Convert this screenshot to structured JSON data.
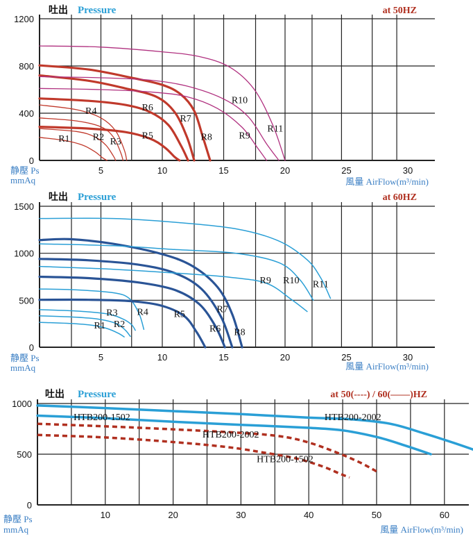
{
  "chart_data": [
    {
      "type": "line",
      "title_cn": "吐出",
      "title_en": "Pressure",
      "frequency_label": "at  50HZ",
      "ylabel_cn": "静壓 Ps",
      "ylabel_unit": "mmAq",
      "xlabel": "風量  AirFlow(m³/min)",
      "xlim": [
        0,
        32.5
      ],
      "ylim": [
        0,
        1200
      ],
      "xticks": [
        5,
        10,
        15,
        20,
        25,
        30
      ],
      "xtick_labels": [
        "5",
        "10",
        "15",
        "20",
        "25",
        "30"
      ],
      "yticks": [
        0,
        400,
        800,
        1200
      ],
      "ytick_labels": [
        "0",
        "400",
        "800",
        "1200"
      ],
      "xgrid": [
        2.6,
        5,
        7.5,
        10,
        12.6,
        15,
        17.6,
        20,
        22.2,
        24.6,
        27.1,
        29.1
      ],
      "grid": true,
      "series": [
        {
          "name": "R1",
          "color": "#c0392b",
          "width": 1.3,
          "label_at": [
            2,
            160
          ],
          "x": [
            0,
            2,
            3.5,
            4.5,
            5.1,
            5.5
          ],
          "y": [
            195,
            170,
            130,
            75,
            25,
            0
          ]
        },
        {
          "name": "R2",
          "color": "#c0392b",
          "width": 1.3,
          "label_at": [
            4.8,
            175
          ],
          "x": [
            0,
            3,
            4.5,
            5.4,
            6,
            6.2
          ],
          "y": [
            270,
            245,
            200,
            130,
            40,
            0
          ]
        },
        {
          "name": "R3",
          "color": "#c0392b",
          "width": 1.3,
          "label_at": [
            6.2,
            135
          ],
          "x": [
            0,
            3,
            5,
            6,
            6.6,
            6.8
          ],
          "y": [
            360,
            335,
            285,
            200,
            70,
            0
          ]
        },
        {
          "name": "R4",
          "color": "#c0392b",
          "width": 1.3,
          "label_at": [
            4.2,
            395
          ],
          "x": [
            0,
            3,
            5,
            6.2,
            6.9,
            7.1
          ],
          "y": [
            470,
            430,
            360,
            250,
            90,
            0
          ]
        },
        {
          "name": "R5",
          "color": "#c0392b",
          "width": 3.2,
          "label_at": [
            8.8,
            185
          ],
          "x": [
            0,
            4,
            7,
            9,
            10.2,
            11,
            11.4
          ],
          "y": [
            285,
            270,
            240,
            185,
            110,
            30,
            0
          ]
        },
        {
          "name": "R6",
          "color": "#c0392b",
          "width": 3.2,
          "label_at": [
            8.8,
            425
          ],
          "x": [
            0,
            4,
            7,
            9,
            10.5,
            11.5,
            12.1
          ],
          "y": [
            525,
            505,
            470,
            410,
            300,
            130,
            0
          ]
        },
        {
          "name": "R7",
          "color": "#c0392b",
          "width": 3.2,
          "label_at": [
            11.9,
            330
          ],
          "x": [
            0,
            4,
            7,
            9.5,
            11,
            12,
            12.6
          ],
          "y": [
            720,
            675,
            610,
            540,
            410,
            200,
            0
          ]
        },
        {
          "name": "R8",
          "color": "#c0392b",
          "width": 3.2,
          "label_at": [
            13.6,
            175
          ],
          "x": [
            0,
            4,
            7.5,
            10,
            11.5,
            12.6,
            13.3,
            13.9
          ],
          "y": [
            805,
            770,
            700,
            640,
            560,
            420,
            200,
            0
          ]
        },
        {
          "name": "R9",
          "color": "#b0307f",
          "width": 1.3,
          "label_at": [
            16.7,
            185
          ],
          "x": [
            0,
            5,
            9,
            12,
            14.5,
            16.5,
            17.8,
            18.5
          ],
          "y": [
            610,
            600,
            580,
            540,
            440,
            280,
            100,
            0
          ]
        },
        {
          "name": "R10",
          "color": "#b0307f",
          "width": 1.3,
          "label_at": [
            16.3,
            485
          ],
          "x": [
            0,
            5,
            9,
            12,
            15,
            17,
            18.5,
            19.5
          ],
          "y": [
            710,
            700,
            680,
            630,
            520,
            370,
            140,
            0
          ]
        },
        {
          "name": "R11",
          "color": "#b0307f",
          "width": 1.3,
          "label_at": [
            19.2,
            245
          ],
          "x": [
            0,
            5,
            10,
            13,
            15.5,
            17.5,
            19,
            20
          ],
          "y": [
            970,
            960,
            920,
            880,
            790,
            600,
            300,
            0
          ]
        }
      ]
    },
    {
      "type": "line",
      "title_cn": "吐出",
      "title_en": "Pressure",
      "frequency_label": "at  60HZ",
      "ylabel_cn": "静壓 Ps",
      "ylabel_unit": "mmAq",
      "xlabel": "風量  AirFlow(m³/min)",
      "xlim": [
        0,
        32.5
      ],
      "ylim": [
        0,
        1500
      ],
      "xticks": [
        5,
        10,
        15,
        20,
        25,
        30
      ],
      "xtick_labels": [
        "5",
        "10",
        "15",
        "20",
        "25",
        "30"
      ],
      "yticks": [
        0,
        500,
        1000,
        1500
      ],
      "ytick_labels": [
        "0",
        "500",
        "1000",
        "1500"
      ],
      "xgrid": [
        2.6,
        5,
        7.5,
        10,
        12.6,
        15,
        17.6,
        20,
        22.2,
        24.6,
        27.1,
        29.1
      ],
      "grid": true,
      "series": [
        {
          "name": "R1",
          "color": "#2a9fd6",
          "width": 1.5,
          "label_at": [
            4.9,
            200
          ],
          "x": [
            0,
            3,
            4.5,
            5.6,
            6.4,
            6.9
          ],
          "y": [
            265,
            250,
            230,
            195,
            150,
            110
          ]
        },
        {
          "name": "R2",
          "color": "#2a9fd6",
          "width": 1.5,
          "label_at": [
            6.5,
            215
          ],
          "x": [
            0,
            3,
            5,
            6.3,
            7,
            7.4
          ],
          "y": [
            335,
            320,
            295,
            250,
            180,
            115
          ]
        },
        {
          "name": "R3",
          "color": "#2a9fd6",
          "width": 1.5,
          "label_at": [
            5.9,
            335
          ],
          "x": [
            0,
            3,
            5.5,
            6.8,
            7.5,
            7.8
          ],
          "y": [
            400,
            385,
            355,
            300,
            240,
            180
          ]
        },
        {
          "name": "R4",
          "color": "#2a9fd6",
          "width": 1.5,
          "label_at": [
            8.4,
            345
          ],
          "x": [
            0,
            3,
            6,
            7.3,
            8.1,
            8.5
          ],
          "y": [
            620,
            610,
            580,
            520,
            360,
            190
          ]
        },
        {
          "name": "R5",
          "color": "#2a5496",
          "width": 3.2,
          "label_at": [
            11.4,
            320
          ],
          "x": [
            0,
            4,
            7.5,
            10,
            11.8,
            12.8,
            13.5
          ],
          "y": [
            505,
            505,
            490,
            440,
            330,
            160,
            0
          ]
        },
        {
          "name": "R6",
          "color": "#2a5496",
          "width": 3.2,
          "label_at": [
            14.3,
            165
          ],
          "x": [
            0,
            4,
            8,
            11,
            13,
            14.3,
            15.1
          ],
          "y": [
            750,
            735,
            690,
            610,
            460,
            230,
            0
          ]
        },
        {
          "name": "R7",
          "color": "#2a5496",
          "width": 3.2,
          "label_at": [
            14.9,
            375
          ],
          "x": [
            0,
            4,
            8,
            11,
            13.2,
            14.8,
            15.7
          ],
          "y": [
            940,
            925,
            880,
            790,
            620,
            320,
            0
          ]
        },
        {
          "name": "R8",
          "color": "#2a5496",
          "width": 3.2,
          "label_at": [
            16.3,
            130
          ],
          "x": [
            0,
            2.5,
            6,
            10,
            12.5,
            14.5,
            15.7,
            16.5
          ],
          "y": [
            1140,
            1150,
            1100,
            990,
            860,
            640,
            350,
            0
          ]
        },
        {
          "name": "R9",
          "color": "#2a9fd6",
          "width": 1.5,
          "label_at": [
            18.4,
            680
          ],
          "x": [
            0,
            6,
            11,
            15.5,
            18.5,
            20.5,
            21.8
          ],
          "y": [
            860,
            830,
            790,
            745,
            680,
            510,
            380
          ]
        },
        {
          "name": "R10",
          "color": "#2a9fd6",
          "width": 1.5,
          "label_at": [
            20.5,
            680
          ],
          "x": [
            0,
            6,
            11,
            16,
            19.5,
            21.2,
            22.3
          ],
          "y": [
            1100,
            1080,
            1040,
            1000,
            900,
            720,
            500
          ]
        },
        {
          "name": "R11",
          "color": "#2a9fd6",
          "width": 1.5,
          "label_at": [
            22.9,
            640
          ],
          "x": [
            0,
            6,
            11,
            16,
            19.5,
            21.8,
            22.9,
            23.7
          ],
          "y": [
            1370,
            1370,
            1330,
            1260,
            1130,
            930,
            740,
            520
          ]
        }
      ]
    },
    {
      "type": "line",
      "title_cn": "吐出",
      "title_en": "Pressure",
      "frequency_label": "at  50(----) / 60(——)HZ",
      "ylabel_cn": "静壓 Ps",
      "ylabel_unit": "mmAq",
      "xlabel": "風量  AirFlow(m³/min)",
      "xlim": [
        0,
        65
      ],
      "ylim": [
        0,
        1000
      ],
      "xticks": [
        10,
        20,
        30,
        40,
        50,
        60
      ],
      "xtick_labels": [
        "10",
        "20",
        "30",
        "40",
        "50",
        "60"
      ],
      "yticks": [
        0,
        500,
        1000
      ],
      "ytick_labels": [
        "0",
        "500",
        "1000"
      ],
      "xgrid": [
        5,
        10,
        15,
        20,
        25,
        30,
        35,
        40,
        45,
        50,
        55,
        60
      ],
      "grid": true,
      "series": [
        {
          "name": "HTB200-2002 60Hz",
          "label": "HTB200-2002",
          "color": "#2a9fd6",
          "dash": false,
          "width": 3.5,
          "label_at": [
            46.5,
            835
          ],
          "x": [
            0,
            10,
            20,
            30,
            40,
            46,
            52,
            57,
            61,
            64.5
          ],
          "y": [
            980,
            955,
            925,
            895,
            860,
            845,
            800,
            705,
            620,
            540
          ]
        },
        {
          "name": "HTB200-1502 60Hz",
          "label": "HTB200-1502",
          "color": "#2a9fd6",
          "dash": false,
          "width": 3.5,
          "label_at": [
            9.5,
            835
          ],
          "x": [
            0,
            10,
            20,
            30,
            40,
            45,
            50,
            54,
            58
          ],
          "y": [
            880,
            855,
            820,
            790,
            760,
            735,
            670,
            590,
            500
          ]
        },
        {
          "name": "HTB200-2002 50Hz",
          "label": "HTB200-2002",
          "color": "#b03020",
          "dash": true,
          "width": 3.5,
          "label_at": [
            28.5,
            665
          ],
          "x": [
            0,
            10,
            20,
            30,
            36,
            40,
            44,
            47.5,
            50
          ],
          "y": [
            800,
            775,
            745,
            710,
            675,
            615,
            520,
            420,
            330
          ]
        },
        {
          "name": "HTB200-1502 50Hz",
          "label": "HTB200-1502",
          "color": "#b03020",
          "dash": true,
          "width": 3.5,
          "label_at": [
            36.5,
            420
          ],
          "x": [
            0,
            10,
            20,
            28,
            33,
            38,
            42,
            44.5,
            46
          ],
          "y": [
            690,
            665,
            620,
            570,
            520,
            460,
            380,
            310,
            270
          ]
        }
      ]
    }
  ]
}
